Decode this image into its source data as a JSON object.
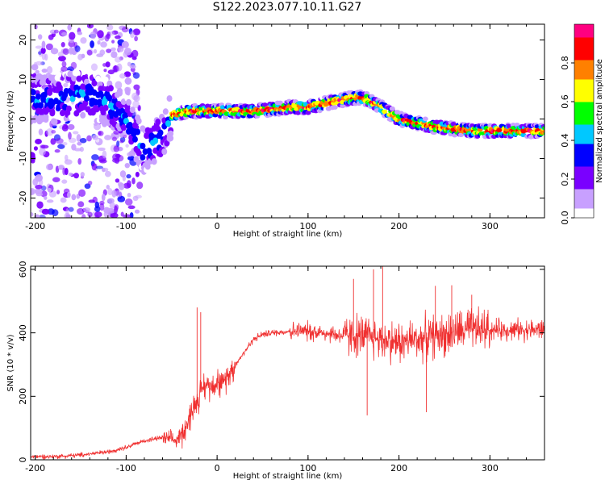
{
  "figure": {
    "title": "S122.2023.077.10.11.G27"
  },
  "chart_data": [
    {
      "type": "heatmap",
      "xlabel": "Height of straight line (km)",
      "ylabel": "Frequency (Hz)",
      "xlim": [
        -205,
        360
      ],
      "ylim": [
        -25,
        24
      ],
      "xticks": [
        -200,
        -100,
        0,
        100,
        200,
        300
      ],
      "yticks": [
        -20,
        -10,
        0,
        10,
        20
      ],
      "colorbar": {
        "label": "Normalized spectral amplitude",
        "range": [
          0.0,
          1.0
        ],
        "ticks": [
          "0.0",
          "0.2",
          "0.4",
          "0.6",
          "0.8"
        ],
        "colormap": [
          "#ffffff",
          "#c8a0ff",
          "#7a00ff",
          "#0000ff",
          "#00c8ff",
          "#00ff00",
          "#ffff00",
          "#ff8000",
          "#ff0000",
          "#ff0080"
        ]
      },
      "ridge": {
        "x": [
          -205,
          -180,
          -160,
          -140,
          -120,
          -100,
          -80,
          -60,
          -50,
          -30,
          -10,
          0,
          20,
          40,
          60,
          80,
          100,
          120,
          140,
          155,
          165,
          180,
          200,
          220,
          240,
          260,
          280,
          300,
          320,
          340,
          360
        ],
        "y": [
          5,
          5,
          6,
          6,
          4,
          0,
          -8,
          -4,
          1,
          2,
          2,
          2,
          2,
          2,
          2.5,
          3,
          3,
          4,
          5,
          5.5,
          5,
          3,
          0,
          -1,
          -2,
          -2.5,
          -3,
          -3,
          -3,
          -3,
          -3
        ]
      }
    },
    {
      "type": "line",
      "xlabel": "Height of straight line (km)",
      "ylabel": "SNR (10 * v/v)",
      "xlim": [
        -205,
        360
      ],
      "ylim": [
        0,
        610
      ],
      "xticks": [
        -200,
        -100,
        0,
        100,
        200,
        300
      ],
      "yticks": [
        0,
        200,
        400,
        600
      ],
      "color": "#f03030",
      "envelope": {
        "x": [
          -205,
          -180,
          -150,
          -120,
          -100,
          -80,
          -60,
          -45,
          -35,
          -25,
          -15,
          -5,
          0,
          5,
          10,
          20,
          30,
          40,
          50,
          60,
          80,
          100,
          120,
          140,
          160,
          180,
          200,
          220,
          240,
          260,
          280,
          300,
          320,
          340,
          360
        ],
        "y": [
          10,
          10,
          15,
          25,
          40,
          60,
          70,
          60,
          100,
          170,
          230,
          240,
          250,
          230,
          260,
          300,
          340,
          380,
          395,
          400,
          405,
          405,
          400,
          390,
          390,
          380,
          370,
          380,
          390,
          400,
          410,
          410,
          410,
          410,
          410
        ]
      },
      "spikes": [
        {
          "x": -22,
          "y": 480
        },
        {
          "x": -18,
          "y": 465
        },
        {
          "x": 150,
          "y": 570
        },
        {
          "x": 172,
          "y": 600
        },
        {
          "x": 182,
          "y": 612
        },
        {
          "x": 165,
          "y": 140
        },
        {
          "x": 240,
          "y": 548
        },
        {
          "x": 230,
          "y": 150
        },
        {
          "x": 258,
          "y": 550
        },
        {
          "x": 280,
          "y": 520
        }
      ]
    }
  ]
}
